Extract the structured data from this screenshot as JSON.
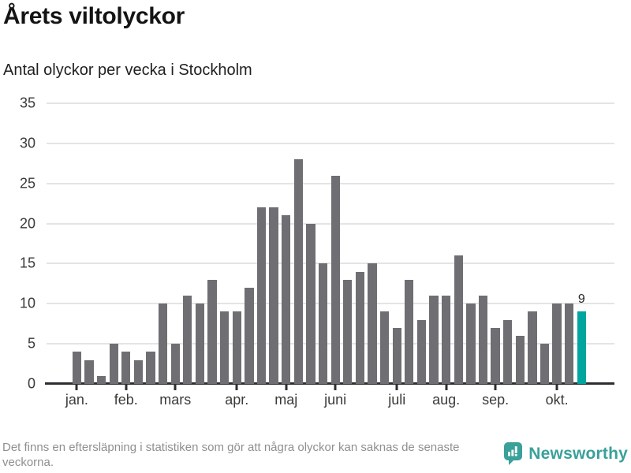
{
  "header": {
    "title": "Årets viltolyckor",
    "subtitle": "Antal olyckor per vecka i Stockholm"
  },
  "footer": {
    "note": "Det finns en eftersläpning i statistiken som gör att några olyckor kan saknas de senaste veckorna.",
    "brand_name": "Newsworthy"
  },
  "colors": {
    "bar": "#6e6e73",
    "highlight": "#00a5a0",
    "brand_teal": "#3aa09a",
    "gridline": "#e4e4e6",
    "axis_line": "#2e2e32",
    "axis_text": "#3a3a3a",
    "footnote_text": "#8f8f93"
  },
  "chart_data": {
    "type": "bar",
    "title": "Årets viltolyckor",
    "subtitle": "Antal olyckor per vecka i Stockholm",
    "x_unit": "vecka",
    "y_unit": "antal olyckor",
    "values": [
      4,
      3,
      1,
      5,
      4,
      3,
      4,
      10,
      5,
      11,
      10,
      13,
      9,
      9,
      12,
      22,
      22,
      21,
      28,
      20,
      15,
      26,
      13,
      14,
      15,
      9,
      7,
      13,
      8,
      11,
      11,
      16,
      10,
      11,
      7,
      8,
      6,
      9,
      5,
      10,
      10,
      9
    ],
    "highlight_index": 41,
    "highlight_value_label": "9",
    "ylim": [
      0,
      35
    ],
    "yticks": [
      0,
      5,
      10,
      15,
      20,
      25,
      30,
      35
    ],
    "xticks": [
      {
        "label": "jan.",
        "week": 1
      },
      {
        "label": "feb.",
        "week": 5
      },
      {
        "label": "mars",
        "week": 9
      },
      {
        "label": "apr.",
        "week": 14
      },
      {
        "label": "maj",
        "week": 18
      },
      {
        "label": "juni",
        "week": 22
      },
      {
        "label": "juli",
        "week": 27
      },
      {
        "label": "aug.",
        "week": 31
      },
      {
        "label": "sep.",
        "week": 35
      },
      {
        "label": "okt.",
        "week": 40
      }
    ],
    "grid": true,
    "legend": false
  }
}
